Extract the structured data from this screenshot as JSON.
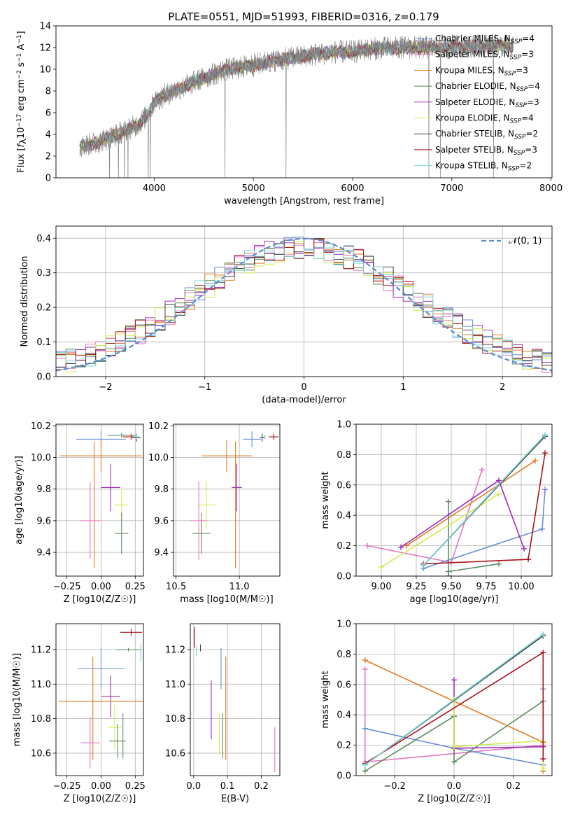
{
  "title": "PLATE=0551, MJD=51993, FIBERID=0316, z=0.179",
  "colors": {
    "Chabrier MILES": "#6a8fd6",
    "Salpeter MILES": "#e377c2",
    "Kroupa MILES": "#e07b22",
    "Chabrier ELODIE": "#5e8c5f",
    "Salpeter ELODIE": "#9b30b5",
    "Kroupa ELODIE": "#d2ec4e",
    "Chabrier STELIB": "#444444",
    "Salpeter STELIB": "#a8141b",
    "Kroupa STELIB": "#7ad5d6",
    "data": "#808080",
    "normal": "#5b8ad6"
  },
  "chart_data": [
    {
      "id": "spectrum",
      "type": "line",
      "xlabel": "wavelength [Angstrom, rest frame]",
      "ylabel": "Flux [fλ10⁻¹⁷ erg cm⁻² s⁻¹ A⁻¹]",
      "xlim": [
        3010,
        8010
      ],
      "ylim": [
        0,
        14
      ],
      "xticks": [
        4000,
        5000,
        6000,
        7000,
        8000
      ],
      "yticks": [
        0,
        2,
        4,
        6,
        8,
        10,
        12,
        14
      ],
      "grid": false,
      "legend_position": "right",
      "legend": [
        {
          "label": "Chabrier MILES, N_SSP=4",
          "base": "Chabrier MILES, N",
          "sub": "SSP",
          "tail": "=4",
          "key": "Chabrier MILES"
        },
        {
          "label": "Salpeter MILES, N_SSP=3",
          "base": "Salpeter MILES, N",
          "sub": "SSP",
          "tail": "=3",
          "key": "Salpeter MILES"
        },
        {
          "label": "Kroupa MILES, N_SSP=3",
          "base": "Kroupa MILES, N",
          "sub": "SSP",
          "tail": "=3",
          "key": "Kroupa MILES"
        },
        {
          "label": "Chabrier ELODIE, N_SSP=4",
          "base": "Chabrier ELODIE, N",
          "sub": "SSP",
          "tail": "=4",
          "key": "Chabrier ELODIE"
        },
        {
          "label": "Salpeter ELODIE, N_SSP=3",
          "base": "Salpeter ELODIE, N",
          "sub": "SSP",
          "tail": "=3",
          "key": "Salpeter ELODIE"
        },
        {
          "label": "Kroupa ELODIE, N_SSP=4",
          "base": "Kroupa ELODIE, N",
          "sub": "SSP",
          "tail": "=4",
          "key": "Kroupa ELODIE"
        },
        {
          "label": "Chabrier STELIB, N_SSP=2",
          "base": "Chabrier STELIB, N",
          "sub": "SSP",
          "tail": "=2",
          "key": "Chabrier STELIB"
        },
        {
          "label": "Salpeter STELIB, N_SSP=3",
          "base": "Salpeter STELIB, N",
          "sub": "SSP",
          "tail": "=3",
          "key": "Salpeter STELIB"
        },
        {
          "label": "Kroupa STELIB, N_SSP=2",
          "base": "Kroupa STELIB, N",
          "sub": "SSP",
          "tail": "=2",
          "key": "Kroupa STELIB"
        }
      ],
      "continuum": {
        "wavelength": [
          3250,
          3400,
          3550,
          3700,
          3850,
          3950,
          4000,
          4100,
          4300,
          4500,
          4700,
          5000,
          5200,
          5500,
          5800,
          6000,
          6200,
          6500,
          6800,
          7000,
          7200,
          7400,
          7600
        ],
        "flux": [
          2.9,
          3.2,
          3.7,
          4.3,
          5.0,
          6.0,
          7.0,
          7.6,
          8.4,
          9.2,
          9.9,
          10.4,
          10.8,
          11.2,
          11.6,
          11.6,
          11.9,
          12.0,
          12.0,
          12.1,
          12.1,
          12.2,
          12.1
        ]
      },
      "data_range": [
        3250,
        7620
      ],
      "absorption_lines": [
        3550,
        3640,
        3700,
        3735,
        3940,
        3960,
        4715,
        5330,
        6770,
        6885,
        7420
      ]
    },
    {
      "id": "residuals",
      "type": "histogram",
      "xlabel": "(data-model)/error",
      "ylabel": "Normed distribution",
      "xlim": [
        -2.5,
        2.5
      ],
      "ylim": [
        0,
        0.435
      ],
      "xticks": [
        -2,
        -1,
        0,
        1,
        2
      ],
      "yticks": [
        0.0,
        0.1,
        0.2,
        0.3,
        0.4
      ],
      "grid": true,
      "legend_position": "top-right",
      "normal_label": "𝒩(0, 1)",
      "bin_edges_from": -2.5,
      "bin_width": 0.1
    },
    {
      "id": "z-age",
      "type": "errorbar",
      "xlabel": "Z [log10(Z/Z☉)]",
      "ylabel": "age [log10(age/yr)]",
      "xlim": [
        -0.33,
        0.31
      ],
      "ylim": [
        9.25,
        10.21
      ],
      "xticks": [
        -0.25,
        0.0,
        0.25
      ],
      "yticks": [
        9.4,
        9.6,
        9.8,
        10.0,
        10.2
      ],
      "points": [
        {
          "model": "Chabrier MILES",
          "x": 0.0,
          "xerr": 0.18,
          "y": 10.115,
          "yerr": 0.05
        },
        {
          "model": "Kroupa MILES",
          "x": 0.0,
          "xerr": 0.3,
          "y": 10.01,
          "yerr": 0.1
        },
        {
          "model": "Kroupa MILES",
          "x": -0.05,
          "xerr": 0.0,
          "y": 9.7,
          "yerr": 0.4
        },
        {
          "model": "Salpeter MILES",
          "x": -0.08,
          "xerr": 0.07,
          "y": 9.6,
          "yerr": 0.24
        },
        {
          "model": "Salpeter ELODIE",
          "x": 0.07,
          "xerr": 0.07,
          "y": 9.81,
          "yerr": 0.15
        },
        {
          "model": "Kroupa ELODIE",
          "x": 0.15,
          "xerr": 0.05,
          "y": 9.7,
          "yerr": 0.1
        },
        {
          "model": "Chabrier ELODIE",
          "x": 0.15,
          "xerr": 0.05,
          "y": 9.52,
          "yerr": 0.13
        },
        {
          "model": "Chabrier ELODIE",
          "x": 0.15,
          "xerr": 0.1,
          "y": 10.14,
          "yerr": 0.015
        },
        {
          "model": "Salpeter STELIB",
          "x": 0.22,
          "xerr": 0.06,
          "y": 10.13,
          "yerr": 0.02
        },
        {
          "model": "Chabrier STELIB",
          "x": 0.26,
          "xerr": 0.03,
          "y": 10.125,
          "yerr": 0.025
        },
        {
          "model": "Kroupa STELIB",
          "x": 0.26,
          "xerr": 0.02,
          "y": 10.13,
          "yerr": 0.015
        }
      ]
    },
    {
      "id": "mass-age",
      "type": "errorbar",
      "xlabel": "mass [log10(M/M☉)]",
      "ylabel": "",
      "xlim": [
        10.48,
        11.32
      ],
      "ylim": [
        9.25,
        10.21
      ],
      "xticks": [
        10.5,
        11.0
      ],
      "yticks": [
        9.4,
        9.6,
        9.8,
        10.0,
        10.2
      ],
      "points": [
        {
          "model": "Kroupa MILES",
          "x": 10.9,
          "xerr": 0.2,
          "y": 10.01,
          "yerr": 0.1
        },
        {
          "model": "Kroupa MILES",
          "x": 10.97,
          "xerr": 0.0,
          "y": 9.7,
          "yerr": 0.4
        },
        {
          "model": "Chabrier MILES",
          "x": 11.1,
          "xerr": 0.07,
          "y": 10.115,
          "yerr": 0.05
        },
        {
          "model": "Salpeter MILES",
          "x": 10.68,
          "xerr": 0.07,
          "y": 9.6,
          "yerr": 0.25
        },
        {
          "model": "Kroupa ELODIE",
          "x": 10.74,
          "xerr": 0.07,
          "y": 9.7,
          "yerr": 0.15
        },
        {
          "model": "Chabrier ELODIE",
          "x": 10.7,
          "xerr": 0.07,
          "y": 9.52,
          "yerr": 0.13
        },
        {
          "model": "Salpeter ELODIE",
          "x": 10.98,
          "xerr": 0.04,
          "y": 9.81,
          "yerr": 0.15
        },
        {
          "model": "Chabrier STELIB",
          "x": 11.18,
          "xerr": 0.02,
          "y": 10.125,
          "yerr": 0.025
        },
        {
          "model": "Salpeter STELIB",
          "x": 11.27,
          "xerr": 0.04,
          "y": 10.13,
          "yerr": 0.02
        },
        {
          "model": "Kroupa STELIB",
          "x": 11.2,
          "xerr": 0.01,
          "y": 10.13,
          "yerr": 0.015
        }
      ]
    },
    {
      "id": "age-weight",
      "type": "line",
      "xlabel": "age [log10(age/yr)]",
      "ylabel": "mass weight",
      "xlim": [
        8.82,
        10.22
      ],
      "ylim": [
        0,
        1
      ],
      "xticks": [
        9.0,
        9.25,
        9.5,
        9.75,
        10.0
      ],
      "yticks": [
        0.0,
        0.2,
        0.4,
        0.6,
        0.8,
        1.0
      ],
      "grid": true,
      "series": [
        {
          "model": "Salpeter MILES",
          "x": [
            8.9,
            9.5,
            9.72
          ],
          "y": [
            0.2,
            0.09,
            0.7
          ]
        },
        {
          "model": "Kroupa MILES",
          "x": [
            9.18,
            10.1
          ],
          "y": [
            0.2,
            0.76
          ]
        },
        {
          "model": "Chabrier MILES",
          "x": [
            9.3,
            10.15,
            10.17
          ],
          "y": [
            0.05,
            0.31,
            0.57
          ]
        },
        {
          "model": "Chabrier ELODIE",
          "x": [
            9.48,
            9.84
          ],
          "y": [
            0.03,
            0.08
          ]
        },
        {
          "model": "Chabrier ELODIE",
          "x": [
            9.48,
            9.48
          ],
          "y": [
            0.0,
            0.49
          ]
        },
        {
          "model": "Salpeter ELODIE",
          "x": [
            9.14,
            9.84,
            10.02
          ],
          "y": [
            0.19,
            0.63,
            0.18
          ]
        },
        {
          "model": "Kroupa ELODIE",
          "x": [
            9.0,
            9.84
          ],
          "y": [
            0.06,
            0.54
          ]
        },
        {
          "model": "Chabrier STELIB",
          "x": [
            9.3,
            10.17
          ],
          "y": [
            0.07,
            0.92
          ]
        },
        {
          "model": "Salpeter STELIB",
          "x": [
            9.3,
            10.05,
            10.17
          ],
          "y": [
            0.08,
            0.11,
            0.81
          ]
        },
        {
          "model": "Kroupa STELIB",
          "x": [
            9.3,
            10.17
          ],
          "y": [
            0.07,
            0.93
          ]
        }
      ]
    },
    {
      "id": "z-mass",
      "type": "errorbar",
      "xlabel": "Z [log10(Z/Z☉)]",
      "ylabel": "mass [log10(M/M☉)]",
      "xlim": [
        -0.33,
        0.31
      ],
      "ylim": [
        10.47,
        11.35
      ],
      "xticks": [
        -0.25,
        0.0,
        0.25
      ],
      "yticks": [
        10.6,
        10.8,
        11.0,
        11.2
      ],
      "points": [
        {
          "model": "Salpeter STELIB",
          "x": 0.22,
          "xerr": 0.08,
          "y": 11.3,
          "yerr": 0.02
        },
        {
          "model": "Chabrier ELODIE",
          "x": 0.2,
          "xerr": 0.09,
          "y": 11.2,
          "yerr": 0.01
        },
        {
          "model": "Kroupa STELIB",
          "x": 0.29,
          "xerr": 0.0,
          "y": 11.18,
          "yerr": 0.05
        },
        {
          "model": "Chabrier MILES",
          "x": 0.0,
          "xerr": 0.17,
          "y": 11.09,
          "yerr": 0.12
        },
        {
          "model": "Salpeter ELODIE",
          "x": 0.07,
          "xerr": 0.07,
          "y": 10.93,
          "yerr": 0.12
        },
        {
          "model": "Kroupa MILES",
          "x": 0.0,
          "xerr": 0.31,
          "y": 10.9,
          "yerr": 0.0
        },
        {
          "model": "Kroupa MILES",
          "x": -0.06,
          "xerr": 0.0,
          "y": 10.86,
          "yerr": 0.3
        },
        {
          "model": "Kroupa ELODIE",
          "x": 0.1,
          "xerr": 0.05,
          "y": 10.75,
          "yerr": 0.13
        },
        {
          "model": "Chabrier ELODIE",
          "x": 0.12,
          "xerr": 0.06,
          "y": 10.67,
          "yerr": 0.1
        },
        {
          "model": "Chabrier ELODIE",
          "x": 0.16,
          "xerr": 0.0,
          "y": 10.7,
          "yerr": 0.13
        },
        {
          "model": "Salpeter MILES",
          "x": -0.08,
          "xerr": 0.07,
          "y": 10.66,
          "yerr": 0.15
        }
      ]
    },
    {
      "id": "ebv-mass",
      "type": "errorbar",
      "xlabel": "E(B-V)",
      "ylabel": "",
      "xlim": [
        -0.01,
        0.255
      ],
      "ylim": [
        10.47,
        11.35
      ],
      "xticks": [
        0.0,
        0.1,
        0.2
      ],
      "yticks": [
        10.6,
        10.8,
        11.0,
        11.2
      ],
      "points": [
        {
          "model": "Salpeter STELIB",
          "x": 0.003,
          "y": 11.27,
          "yerr": 0.06
        },
        {
          "model": "Kroupa STELIB",
          "x": 0.008,
          "y": 11.19,
          "yerr": 0.03
        },
        {
          "model": "Chabrier STELIB",
          "x": 0.02,
          "y": 11.21,
          "yerr": 0.02
        },
        {
          "model": "Chabrier MILES",
          "x": 0.081,
          "y": 11.09,
          "yerr": 0.12
        },
        {
          "model": "Kroupa MILES",
          "x": 0.095,
          "y": 10.86,
          "yerr": 0.3
        },
        {
          "model": "Salpeter ELODIE",
          "x": 0.052,
          "y": 10.85,
          "yerr": 0.17
        },
        {
          "model": "Kroupa ELODIE",
          "x": 0.076,
          "y": 10.71,
          "yerr": 0.12
        },
        {
          "model": "Chabrier ELODIE",
          "x": 0.086,
          "y": 10.7,
          "yerr": 0.13
        },
        {
          "model": "Salpeter MILES",
          "x": 0.24,
          "y": 10.62,
          "yerr": 0.13
        }
      ]
    },
    {
      "id": "z-weight",
      "type": "line",
      "xlabel": "Z [log10(Z/Z☉)]",
      "ylabel": "mass weight",
      "xlim": [
        -0.33,
        0.33
      ],
      "ylim": [
        0,
        1
      ],
      "xticks": [
        -0.2,
        0.0,
        0.2
      ],
      "yticks": [
        0.0,
        0.2,
        0.4,
        0.6,
        0.8,
        1.0
      ],
      "grid": true,
      "series": [
        {
          "model": "Kroupa MILES",
          "x": [
            -0.3,
            0.3,
            0.3
          ],
          "y": [
            0.76,
            0.22,
            0.03
          ]
        },
        {
          "model": "Salpeter MILES",
          "x": [
            -0.3,
            -0.3,
            0.3
          ],
          "y": [
            0.7,
            0.09,
            0.2
          ]
        },
        {
          "model": "Chabrier MILES",
          "x": [
            -0.3,
            0.0,
            0.3,
            0.3
          ],
          "y": [
            0.31,
            0.18,
            0.07,
            0.57
          ]
        },
        {
          "model": "Chabrier ELODIE",
          "x": [
            -0.3,
            0.0,
            0.0,
            0.3,
            0.3
          ],
          "y": [
            0.03,
            0.39,
            0.09,
            0.49,
            0.19
          ]
        },
        {
          "model": "Salpeter ELODIE",
          "x": [
            0.0,
            0.0,
            0.3
          ],
          "y": [
            0.63,
            0.18,
            0.19
          ]
        },
        {
          "model": "Kroupa ELODIE",
          "x": [
            0.0,
            0.0,
            0.3,
            0.3
          ],
          "y": [
            0.5,
            0.19,
            0.23,
            0.05
          ]
        },
        {
          "model": "Chabrier STELIB",
          "x": [
            -0.3,
            0.3
          ],
          "y": [
            0.07,
            0.92
          ]
        },
        {
          "model": "Salpeter STELIB",
          "x": [
            -0.3,
            0.3,
            0.3
          ],
          "y": [
            0.08,
            0.81,
            0.11
          ]
        },
        {
          "model": "Kroupa STELIB",
          "x": [
            -0.3,
            0.3
          ],
          "y": [
            0.07,
            0.93
          ]
        }
      ]
    }
  ]
}
